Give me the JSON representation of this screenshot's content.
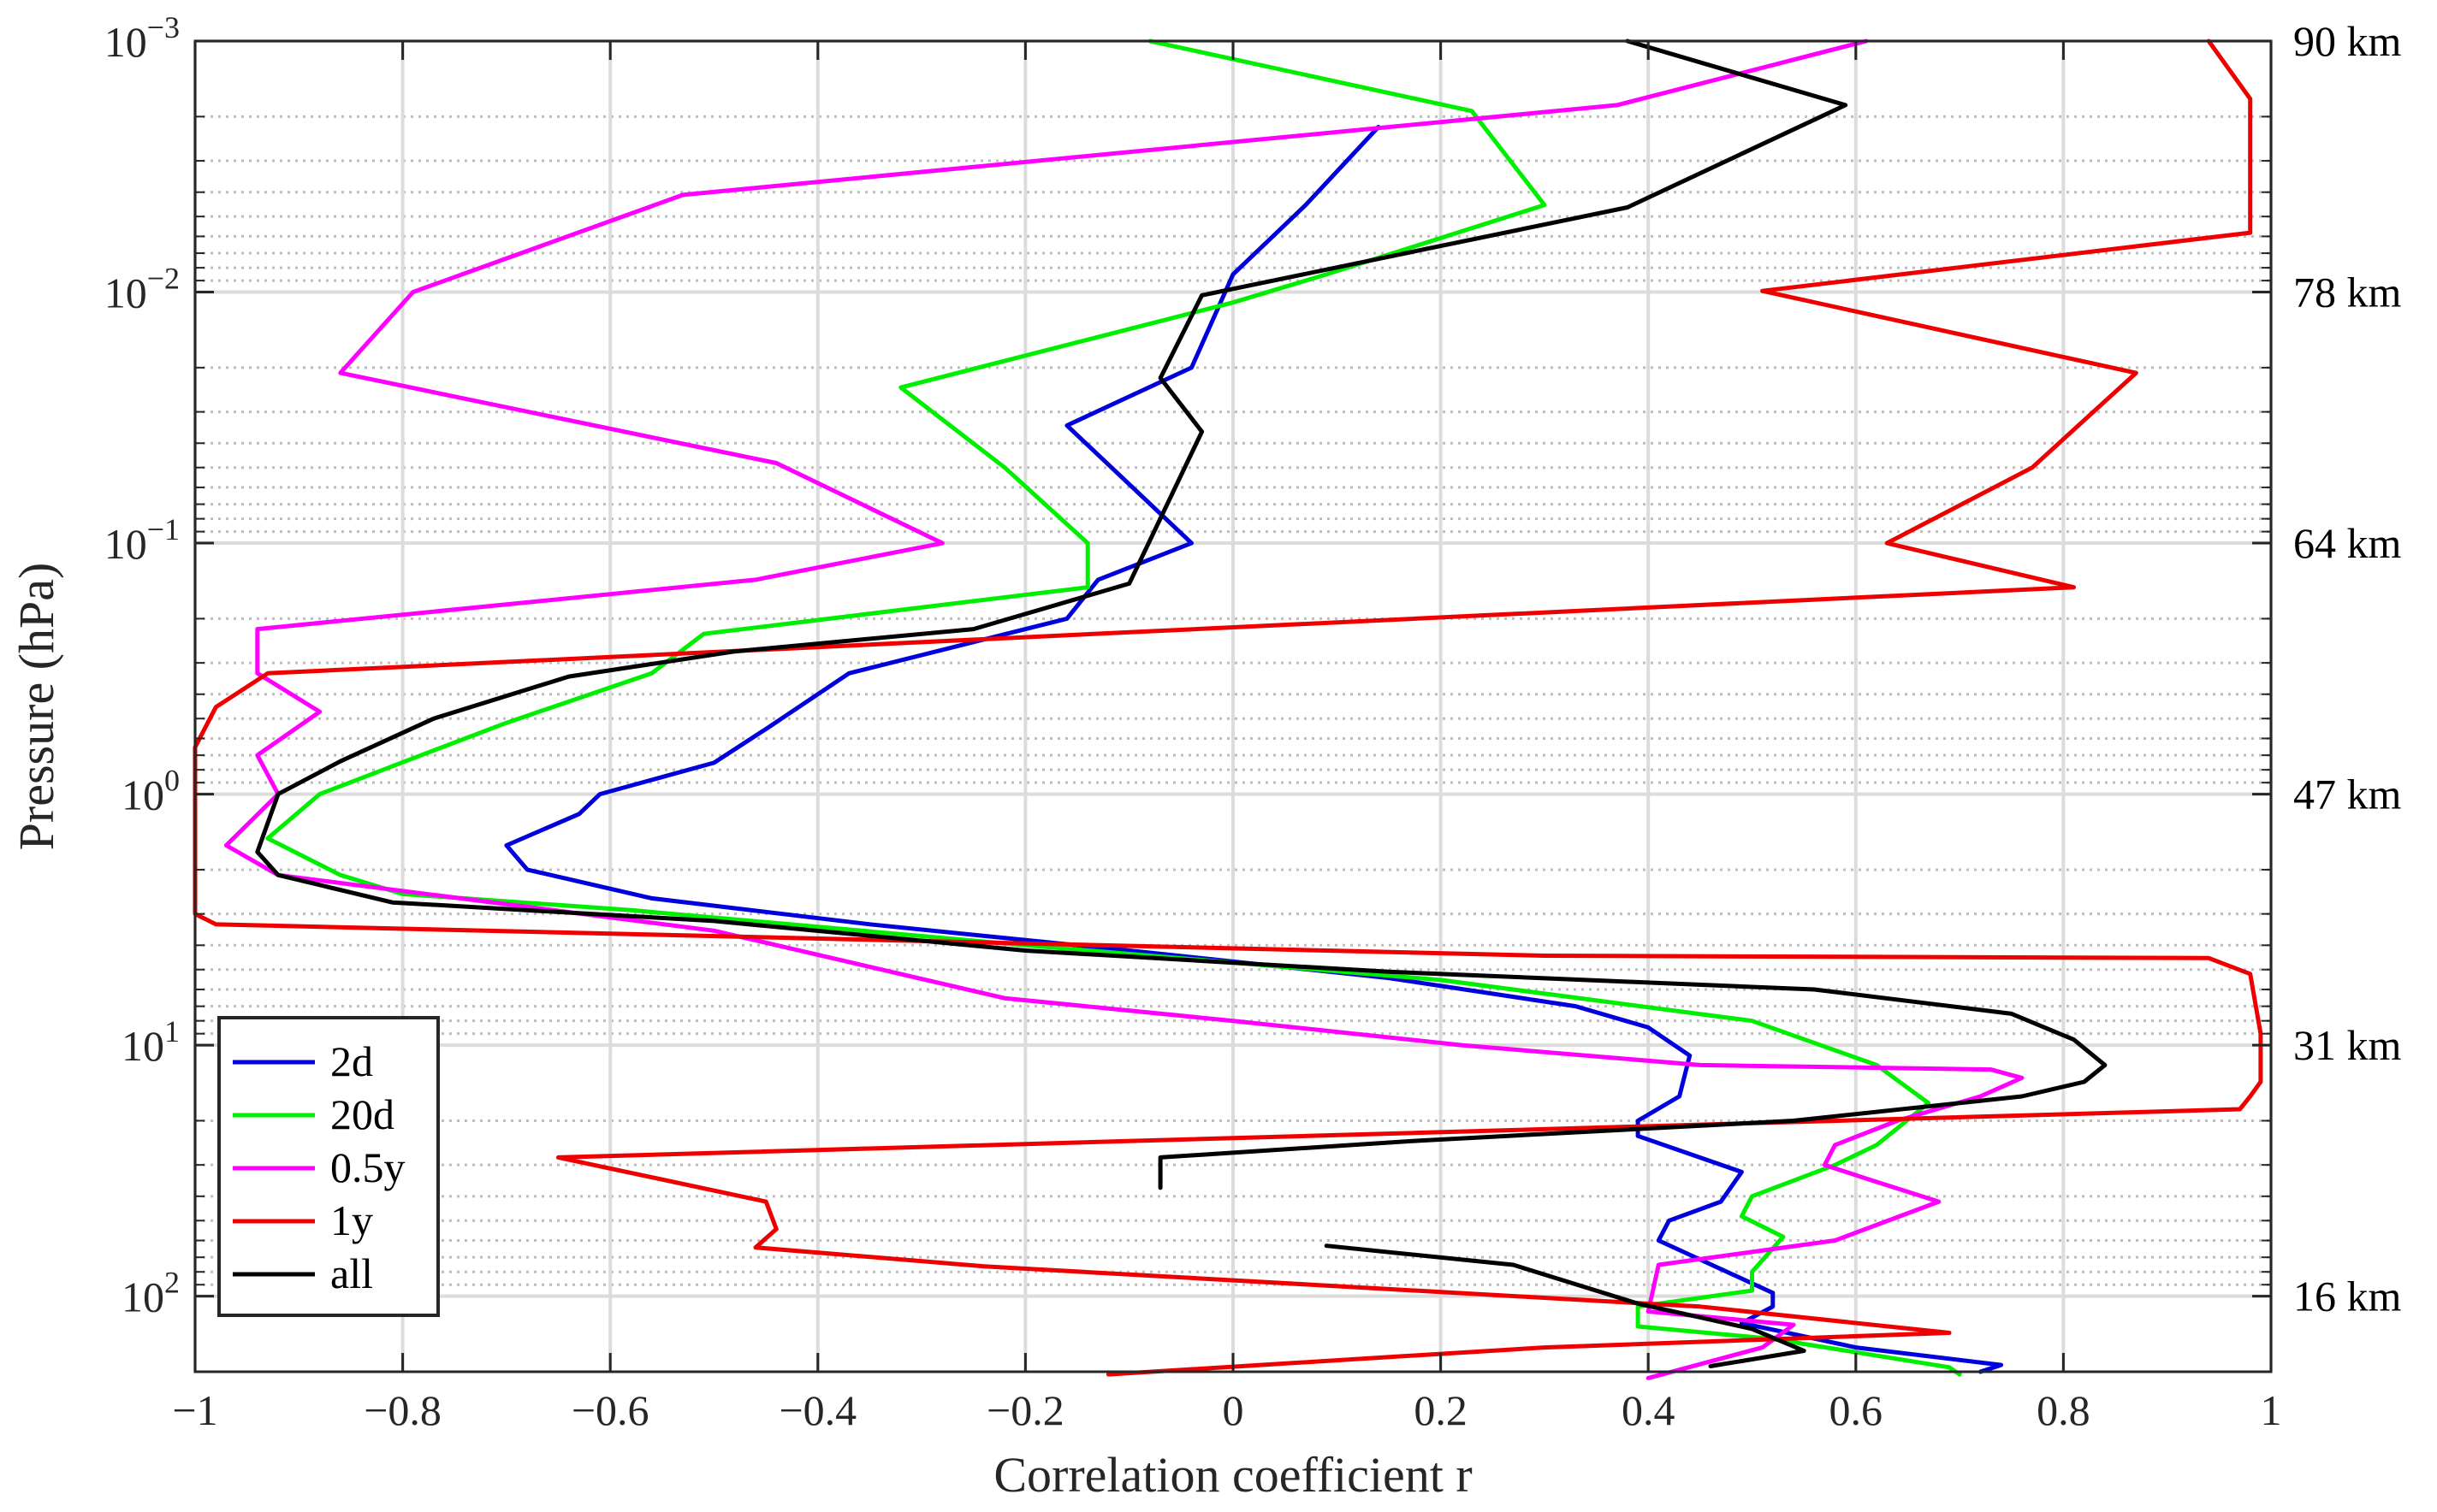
{
  "chart_data": {
    "type": "line",
    "xlabel": "Correlation coefficient r",
    "ylabel": "Pressure (hPa)",
    "xlim": [
      -1,
      1
    ],
    "ylim": [
      0.001,
      200
    ],
    "y_scale": "log",
    "y_reversed": true,
    "x_ticks": [
      -1,
      -0.8,
      -0.6,
      -0.4,
      -0.2,
      0,
      0.2,
      0.4,
      0.6,
      0.8,
      1
    ],
    "x_tick_labels": [
      "−1",
      "−0.8",
      "−0.6",
      "−0.4",
      "−0.2",
      "0",
      "0.2",
      "0.4",
      "0.6",
      "0.8",
      "1"
    ],
    "y_ticks": [
      0.001,
      0.01,
      0.1,
      1,
      10,
      100
    ],
    "y_tick_labels": [
      {
        "base": "10",
        "exp": "−3"
      },
      {
        "base": "10",
        "exp": "−2"
      },
      {
        "base": "10",
        "exp": "−1"
      },
      {
        "base": "10",
        "exp": "0"
      },
      {
        "base": "10",
        "exp": "1"
      },
      {
        "base": "10",
        "exp": "2"
      }
    ],
    "altitude_labels": [
      "90 km",
      "78 km",
      "64 km",
      "47 km",
      "31 km",
      "16 km"
    ],
    "grid": true,
    "minor_grid_dotted": true,
    "legend_position": "bottom-left",
    "series": [
      {
        "name": "2d",
        "color": "#0000dd",
        "points": [
          [
            0.14,
            0.0022
          ],
          [
            0.07,
            0.0045
          ],
          [
            0.0,
            0.0085
          ],
          [
            -0.04,
            0.02
          ],
          [
            -0.16,
            0.034
          ],
          [
            -0.04,
            0.1
          ],
          [
            -0.13,
            0.14
          ],
          [
            -0.16,
            0.2
          ],
          [
            -0.37,
            0.33
          ],
          [
            -0.45,
            0.55
          ],
          [
            -0.5,
            0.75
          ],
          [
            -0.61,
            1.0
          ],
          [
            -0.63,
            1.2
          ],
          [
            -0.7,
            1.6
          ],
          [
            -0.68,
            2.0
          ],
          [
            -0.56,
            2.6
          ],
          [
            -0.35,
            3.3
          ],
          [
            -0.1,
            4.2
          ],
          [
            0.15,
            5.4
          ],
          [
            0.33,
            7.0
          ],
          [
            0.4,
            8.5
          ],
          [
            0.44,
            11.0
          ],
          [
            0.43,
            16.0
          ],
          [
            0.39,
            20.0
          ],
          [
            0.39,
            23.0
          ],
          [
            0.49,
            32.0
          ],
          [
            0.47,
            42.0
          ],
          [
            0.42,
            50.0
          ],
          [
            0.41,
            60.0
          ],
          [
            0.52,
            97.0
          ],
          [
            0.52,
            110.0
          ],
          [
            0.49,
            128.0
          ],
          [
            0.6,
            160.0
          ],
          [
            0.74,
            188.0
          ],
          [
            0.72,
            200.0
          ]
        ]
      },
      {
        "name": "20d",
        "color": "#00ee00",
        "points": [
          [
            -0.08,
            0.001
          ],
          [
            0.23,
            0.0019
          ],
          [
            0.3,
            0.0045
          ],
          [
            0.09,
            0.0085
          ],
          [
            0.0,
            0.011
          ],
          [
            -0.32,
            0.024
          ],
          [
            -0.22,
            0.05
          ],
          [
            -0.14,
            0.1
          ],
          [
            -0.14,
            0.15
          ],
          [
            -0.51,
            0.23
          ],
          [
            -0.56,
            0.33
          ],
          [
            -0.7,
            0.52
          ],
          [
            -0.79,
            0.72
          ],
          [
            -0.88,
            1.0
          ],
          [
            -0.93,
            1.5
          ],
          [
            -0.86,
            2.1
          ],
          [
            -0.8,
            2.5
          ],
          [
            -0.58,
            2.9
          ],
          [
            -0.2,
            4.0
          ],
          [
            0.2,
            5.5
          ],
          [
            0.5,
            8.0
          ],
          [
            0.62,
            12.0
          ],
          [
            0.67,
            17.0
          ],
          [
            0.62,
            25.0
          ],
          [
            0.58,
            30.0
          ],
          [
            0.5,
            40.0
          ],
          [
            0.49,
            48.0
          ],
          [
            0.53,
            58.0
          ],
          [
            0.5,
            80.0
          ],
          [
            0.5,
            95.0
          ],
          [
            0.39,
            110.0
          ],
          [
            0.39,
            132.0
          ],
          [
            0.52,
            148.0
          ],
          [
            0.69,
            192.0
          ],
          [
            0.7,
            205.0
          ]
        ]
      },
      {
        "name": "0.5y",
        "color": "#ff00ff",
        "points": [
          [
            0.61,
            0.001
          ],
          [
            0.37,
            0.0018
          ],
          [
            -0.53,
            0.0041
          ],
          [
            -0.79,
            0.01
          ],
          [
            -0.86,
            0.021
          ],
          [
            -0.44,
            0.048
          ],
          [
            -0.28,
            0.1
          ],
          [
            -0.46,
            0.14
          ],
          [
            -0.94,
            0.22
          ],
          [
            -0.94,
            0.33
          ],
          [
            -0.88,
            0.47
          ],
          [
            -0.94,
            0.7
          ],
          [
            -0.92,
            1.0
          ],
          [
            -0.97,
            1.6
          ],
          [
            -0.92,
            2.1
          ],
          [
            -0.5,
            3.5
          ],
          [
            -0.22,
            6.5
          ],
          [
            0.0,
            8.0
          ],
          [
            0.22,
            10.0
          ],
          [
            0.45,
            12.0
          ],
          [
            0.73,
            12.5
          ],
          [
            0.76,
            13.5
          ],
          [
            0.72,
            16.0
          ],
          [
            0.64,
            20.0
          ],
          [
            0.58,
            25.0
          ],
          [
            0.57,
            30.0
          ],
          [
            0.61,
            34.0
          ],
          [
            0.68,
            42.0
          ],
          [
            0.58,
            60.0
          ],
          [
            0.41,
            75.0
          ],
          [
            0.4,
            115.0
          ],
          [
            0.54,
            130.0
          ],
          [
            0.51,
            160.0
          ],
          [
            0.4,
            212.0
          ]
        ]
      },
      {
        "name": "1y",
        "color": "#ee0000",
        "points": [
          [
            0.94,
            0.001
          ],
          [
            0.98,
            0.0017
          ],
          [
            0.98,
            0.0058
          ],
          [
            0.51,
            0.0099
          ],
          [
            0.87,
            0.021
          ],
          [
            0.77,
            0.05
          ],
          [
            0.63,
            0.1
          ],
          [
            0.81,
            0.15
          ],
          [
            -0.93,
            0.33
          ],
          [
            -0.98,
            0.45
          ],
          [
            -1.0,
            0.65
          ],
          [
            -1.0,
            1.0
          ],
          [
            -1.0,
            3.0
          ],
          [
            -0.98,
            3.3
          ],
          [
            0.3,
            4.4
          ],
          [
            0.94,
            4.5
          ],
          [
            0.98,
            5.2
          ],
          [
            0.99,
            9.0
          ],
          [
            0.99,
            14.0
          ],
          [
            0.98,
            16.0
          ],
          [
            0.97,
            18.0
          ],
          [
            -0.65,
            28.0
          ],
          [
            -0.45,
            42.0
          ],
          [
            -0.44,
            54.0
          ],
          [
            -0.46,
            64.0
          ],
          [
            -0.24,
            76.0
          ],
          [
            0.45,
            110.0
          ],
          [
            0.69,
            140.0
          ],
          [
            0.3,
            160.0
          ],
          [
            -0.12,
            205.0
          ]
        ]
      },
      {
        "name": "all",
        "color": "#000000",
        "points": [
          [
            0.38,
            0.001
          ],
          [
            0.59,
            0.0018
          ],
          [
            0.38,
            0.0046
          ],
          [
            -0.03,
            0.0103
          ],
          [
            -0.07,
            0.022
          ],
          [
            -0.03,
            0.036
          ],
          [
            -0.1,
            0.145
          ],
          [
            -0.25,
            0.22
          ],
          [
            -0.48,
            0.27
          ],
          [
            -0.64,
            0.34
          ],
          [
            -0.77,
            0.5
          ],
          [
            -0.86,
            0.74
          ],
          [
            -0.92,
            1.0
          ],
          [
            -0.94,
            1.7
          ],
          [
            -0.92,
            2.1
          ],
          [
            -0.81,
            2.7
          ],
          [
            -0.5,
            3.2
          ],
          [
            -0.2,
            4.2
          ],
          [
            0.15,
            5.1
          ],
          [
            0.56,
            6.0
          ],
          [
            0.75,
            7.5
          ],
          [
            0.81,
            9.5
          ],
          [
            0.84,
            12.0
          ],
          [
            0.82,
            14.0
          ],
          [
            0.76,
            16.0
          ],
          [
            0.54,
            20.0
          ],
          [
            0.18,
            24.0
          ],
          [
            -0.07,
            28.0
          ],
          [
            -0.07,
            34.0
          ],
          [
            -0.07,
            37.0
          ]
        ],
        "segment2": [
          [
            0.09,
            63.0
          ],
          [
            0.27,
            75.0
          ],
          [
            0.39,
            107.0
          ],
          [
            0.5,
            135.0
          ],
          [
            0.55,
            165.0
          ],
          [
            0.46,
            190.0
          ]
        ]
      }
    ]
  }
}
